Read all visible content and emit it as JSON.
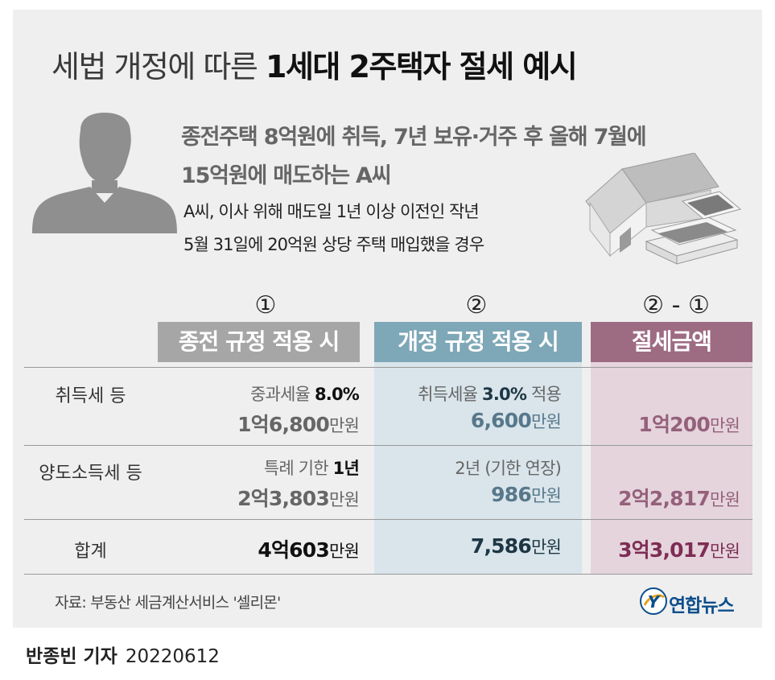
{
  "title": {
    "light": "세법 개정에 따른 ",
    "bold": "1세대 2주택자 절세 예시"
  },
  "lead": {
    "line1": "종전주택 8억원에 취득, 7년 보유·거주 후 올해 7월에",
    "line2": "15억원에 매도하는 A씨"
  },
  "sub": {
    "line1": "A씨, 이사 위해 매도일 1년 이상 이전인 작년",
    "line2": "5월 31일에 20억원 상당 주택 매입했을 경우"
  },
  "columns": {
    "markers": [
      "①",
      "②",
      "② - ①"
    ],
    "headers": [
      "종전 규정 적용 시",
      "개정 규정 적용 시",
      "절세금액"
    ]
  },
  "rows": [
    {
      "label": "취득세 등",
      "col1": {
        "note_prefix": "중과세율 ",
        "note_value": "8.0%",
        "amount": "1억6,800",
        "unit": "만원"
      },
      "col2": {
        "note_prefix": "취득세율 ",
        "note_value": "3.0%",
        "note_suffix": " 적용",
        "amount": "6,600",
        "unit": "만원"
      },
      "col3": {
        "amount": "1억200",
        "unit": "만원"
      }
    },
    {
      "label": "양도소득세 등",
      "col1": {
        "note_prefix": "특례 기한 ",
        "note_value": "1년",
        "amount": "2억3,803",
        "unit": "만원"
      },
      "col2": {
        "note": "2년 (기한 연장)",
        "amount": "986",
        "unit": "만원"
      },
      "col3": {
        "amount": "2억2,817",
        "unit": "만원"
      }
    },
    {
      "label": "합계",
      "col1": {
        "amount": "4억603",
        "unit": "만원"
      },
      "col2": {
        "amount": "7,586",
        "unit": "만원"
      },
      "col3": {
        "amount": "3억3,017",
        "unit": "만원"
      }
    }
  ],
  "source": "자료: 부동산 세금계산서비스 '셀리몬'",
  "logo": {
    "text": "연합뉴스",
    "mark": "Y"
  },
  "byline": {
    "name": "반종빈 기자",
    "date": "20220612"
  },
  "icons": {
    "person": "person-silhouette-icon",
    "house": "house-with-money-icon"
  },
  "colors": {
    "header_old": "#a6a6a6",
    "header_new": "#7ea7b7",
    "header_saving": "#9d6b82",
    "saving_text": "#7e2d55"
  }
}
